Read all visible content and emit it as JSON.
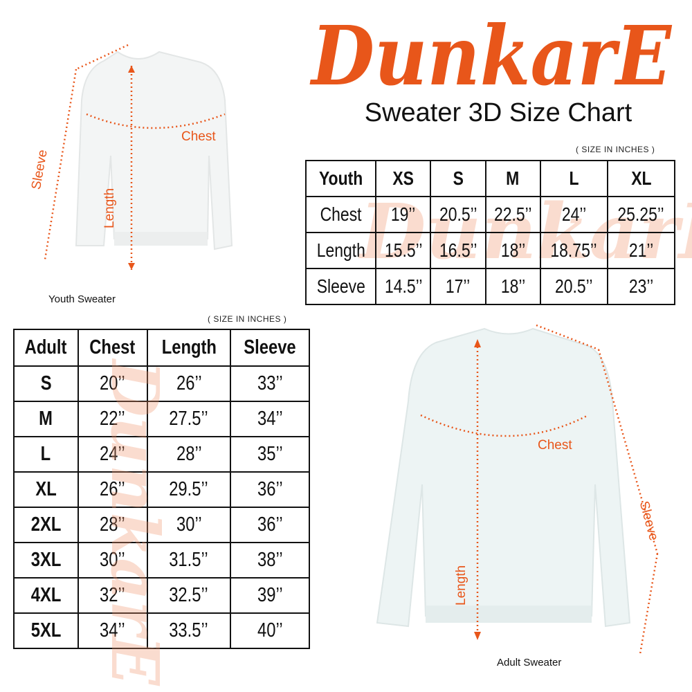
{
  "brand": {
    "logo_text": "DunkarE",
    "color": "#e8561a"
  },
  "title": "Sweater 3D Size Chart",
  "youth": {
    "note": "( SIZE IN INCHES )",
    "caption": "Youth Sweater",
    "labels": {
      "chest": "Chest",
      "length": "Length",
      "sleeve": "Sleeve"
    },
    "table": {
      "headers": [
        "Youth",
        "XS",
        "S",
        "M",
        "L",
        "XL"
      ],
      "rows": [
        [
          "Chest",
          "19’’",
          "20.5’’",
          "22.5’’",
          "24’’",
          "25.25’’"
        ],
        [
          "Length",
          "15.5’’",
          "16.5’’",
          "18’’",
          "18.75’’",
          "21’’"
        ],
        [
          "Sleeve",
          "14.5’’",
          "17’’",
          "18’’",
          "20.5’’",
          "23’’"
        ]
      ]
    }
  },
  "adult": {
    "note": "( SIZE IN INCHES )",
    "caption": "Adult Sweater",
    "labels": {
      "chest": "Chest",
      "length": "Length",
      "sleeve": "Sleeve"
    },
    "table": {
      "headers": [
        "Adult",
        "Chest",
        "Length",
        "Sleeve"
      ],
      "rows": [
        [
          "S",
          "20’’",
          "26’’",
          "33’’"
        ],
        [
          "M",
          "22’’",
          "27.5’’",
          "34’’"
        ],
        [
          "L",
          "24’’",
          "28’’",
          "35’’"
        ],
        [
          "XL",
          "26’’",
          "29.5’’",
          "36’’"
        ],
        [
          "2XL",
          "28’’",
          "30’’",
          "36’’"
        ],
        [
          "3XL",
          "30’’",
          "31.5’’",
          "38’’"
        ],
        [
          "4XL",
          "32’’",
          "32.5’’",
          "39’’"
        ],
        [
          "5XL",
          "34’’",
          "33.5’’",
          "40’’"
        ]
      ]
    }
  }
}
